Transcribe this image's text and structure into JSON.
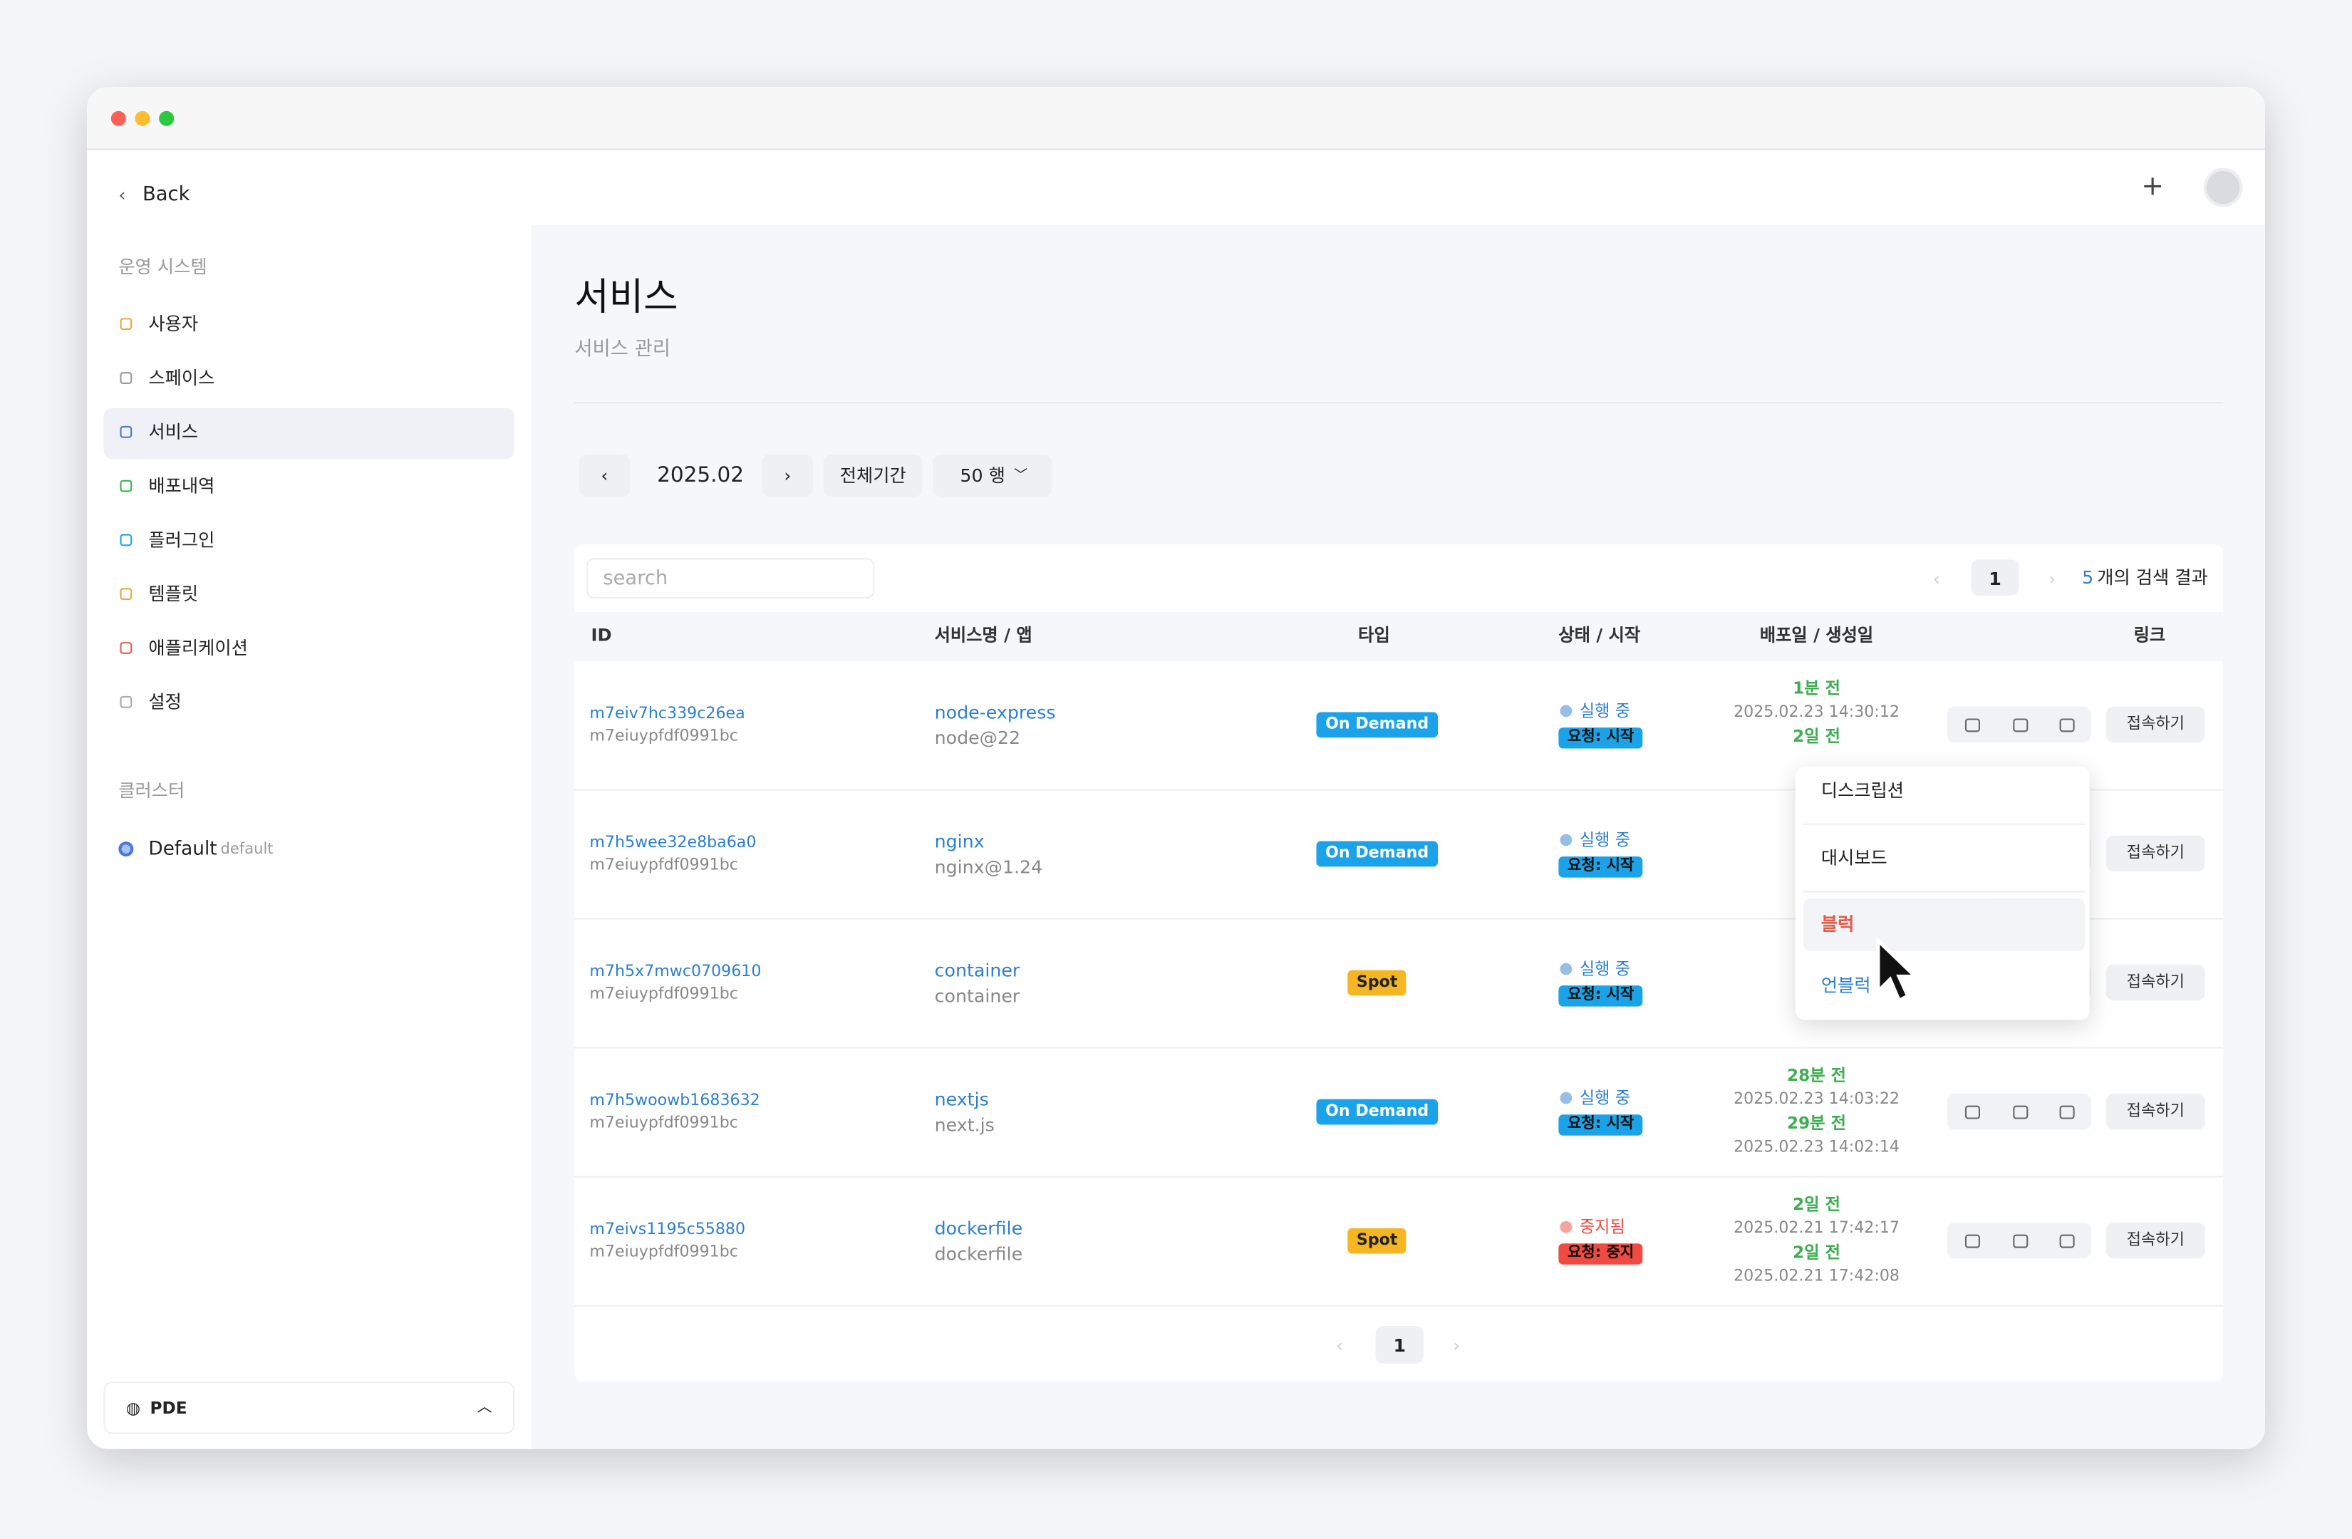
{
  "sidebar": {
    "back": "Back",
    "section1": "운영 시스템",
    "nav": [
      "사용자",
      "스페이스",
      "서비스",
      "배포내역",
      "플러그인",
      "템플릿",
      "애플리케이션",
      "설정"
    ],
    "section2": "클러스터",
    "cluster": {
      "name": "Default",
      "tag": "default"
    },
    "footer": "PDE"
  },
  "header": {
    "title": "서비스",
    "subtitle": "서비스 관리"
  },
  "toolbar": {
    "month": "2025.02",
    "all_period": "전체기간",
    "rows": "50 행"
  },
  "search": {
    "placeholder": "search",
    "page": "1",
    "result_count": "5",
    "result_label": "개의 검색 결과"
  },
  "table": {
    "columns": [
      "ID",
      "서비스명 / 앱",
      "타입",
      "상태 / 시작",
      "배포일 / 생성일",
      "링크"
    ],
    "rows": [
      {
        "id": "m7eiv7hc339c26ea",
        "owner": "m7eiuypfdf0991bc",
        "name": "node-express",
        "app": "node@22",
        "type": "On Demand",
        "status": "실행 중",
        "request": "요청: 시작",
        "deployed_rel": "1분 전",
        "deployed_at": "2025.02.23 14:30:12",
        "created_rel": "2일 전",
        "link": "접속하기"
      },
      {
        "id": "m7h5wee32e8ba6a0",
        "owner": "m7eiuypfdf0991bc",
        "name": "nginx",
        "app": "nginx@1.24",
        "type": "On Demand",
        "status": "실행 중",
        "request": "요청: 시작",
        "link": "접속하기"
      },
      {
        "id": "m7h5x7mwc0709610",
        "owner": "m7eiuypfdf0991bc",
        "name": "container",
        "app": "container",
        "type": "Spot",
        "status": "실행 중",
        "request": "요청: 시작",
        "link": "접속하기"
      },
      {
        "id": "m7h5woowb1683632",
        "owner": "m7eiuypfdf0991bc",
        "name": "nextjs",
        "app": "next.js",
        "type": "On Demand",
        "status": "실행 중",
        "request": "요청: 시작",
        "deployed_rel": "28분 전",
        "deployed_at": "2025.02.23 14:03:22",
        "created_rel": "29분 전",
        "created_at": "2025.02.23 14:02:14",
        "link": "접속하기"
      },
      {
        "id": "m7eivs1195c55880",
        "owner": "m7eiuypfdf0991bc",
        "name": "dockerfile",
        "app": "dockerfile",
        "type": "Spot",
        "status": "중지됨",
        "request": "요청: 중지",
        "deployed_rel": "2일 전",
        "deployed_at": "2025.02.21 17:42:17",
        "created_rel": "2일 전",
        "created_at": "2025.02.21 17:42:08",
        "link": "접속하기"
      }
    ]
  },
  "dropdown": {
    "items": [
      "디스크립션",
      "대시보드",
      "블럭",
      "언블럭"
    ]
  },
  "pagination": {
    "page": "1"
  }
}
